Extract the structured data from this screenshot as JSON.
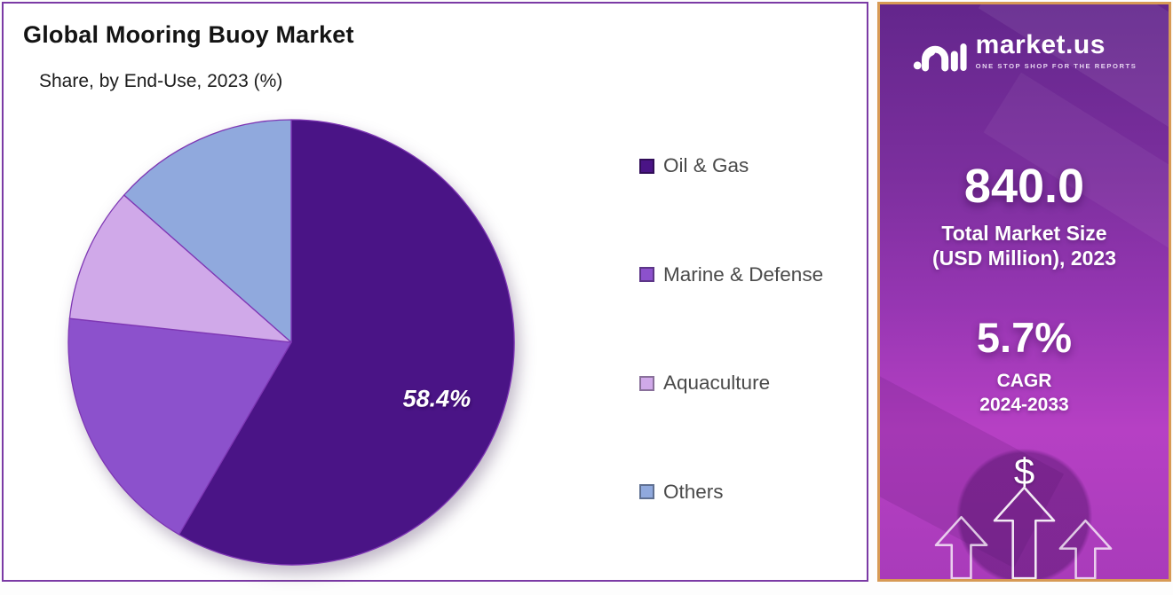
{
  "chart_data": {
    "type": "pie",
    "title": "Global Mooring Buoy Market",
    "subtitle": "Share, by End-Use, 2023 (%)",
    "categories": [
      "Oil & Gas",
      "Marine & Defense",
      "Aquaculture",
      "Others"
    ],
    "values": [
      58.4,
      18.3,
      9.8,
      13.5
    ],
    "units": "%",
    "data_labels": [
      "58.4%",
      "",
      "",
      ""
    ],
    "colors": [
      "#4A1486",
      "#8C51CC",
      "#D0A9E9",
      "#90A9DD"
    ],
    "slice_outline_color": "#7E37B4",
    "start_angle_deg": 0,
    "direction": "clockwise",
    "legend_position": "right",
    "grid": false
  },
  "sidebar": {
    "logo": {
      "brand": "market.us",
      "tagline": "ONE STOP SHOP FOR THE REPORTS"
    },
    "market_size": {
      "value": "840.0",
      "label_line1": "Total Market Size",
      "label_line2": "(USD Million), 2023"
    },
    "cagr": {
      "value": "5.7%",
      "label_line1": "CAGR",
      "label_line2": "2024-2033"
    },
    "dollar_symbol": "$"
  },
  "colors": {
    "panel_border": "#7B3AA5",
    "sidebar_border": "#D79A55",
    "sidebar_gradient_top": "#63268C",
    "sidebar_gradient_bottom": "#A93BBA",
    "legend_text": "#4A4A4A"
  }
}
